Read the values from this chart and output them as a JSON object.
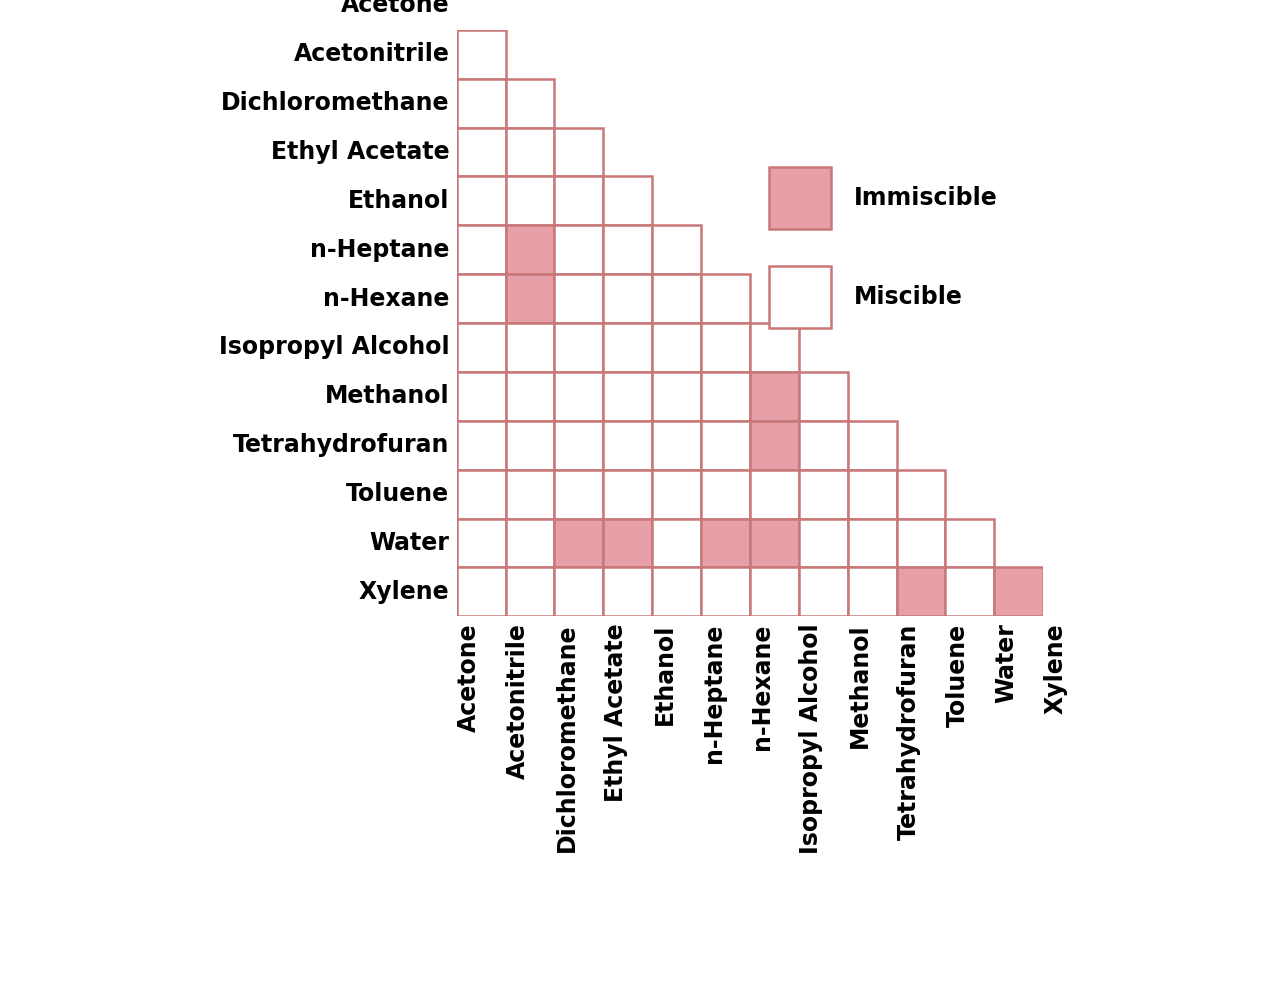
{
  "solvents": [
    "Acetone",
    "Acetonitrile",
    "Dichloromethane",
    "Ethyl Acetate",
    "Ethanol",
    "n-Heptane",
    "n-Hexane",
    "Isopropyl Alcohol",
    "Methanol",
    "Tetrahydrofuran",
    "Toluene",
    "Water",
    "Xylene"
  ],
  "immiscible_pairs": [
    [
      5,
      1
    ],
    [
      6,
      1
    ],
    [
      8,
      6
    ],
    [
      9,
      6
    ],
    [
      11,
      2
    ],
    [
      11,
      3
    ],
    [
      11,
      5
    ],
    [
      11,
      6
    ],
    [
      12,
      9
    ],
    [
      12,
      11
    ]
  ],
  "cell_color_immiscible": "#e8a0a8",
  "cell_color_miscible": "#ffffff",
  "border_color": "#c87878",
  "background_color": "#ffffff",
  "legend_immiscible_color": "#e8a0a8",
  "legend_miscible_color": "#ffffff",
  "row_label_fontsize": 17,
  "col_label_fontsize": 17,
  "legend_fontsize": 17,
  "cell_linewidth": 1.8
}
